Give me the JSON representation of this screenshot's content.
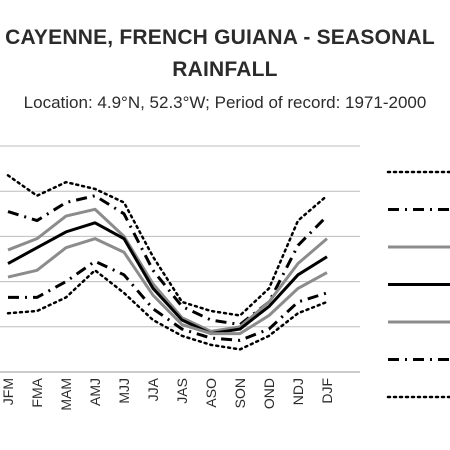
{
  "chart_data": {
    "type": "line",
    "title_line1": "CAYENNE, FRENCH GUIANA - SEASONAL",
    "title_line2": "RAINFALL",
    "subtitle": "Location: 4.9°N, 52.3°W; Period of record: 1971-2000",
    "categories": [
      "JFM",
      "FMA",
      "MAM",
      "AMJ",
      "MJJ",
      "JJA",
      "JAS",
      "ASO",
      "SON",
      "OND",
      "NDJ",
      "DJF"
    ],
    "grid": true,
    "ylim": [
      0,
      5
    ],
    "series": [
      {
        "style": "dotted",
        "width": 2.5,
        "color": "#000000",
        "values": [
          4.35,
          3.9,
          4.2,
          4.05,
          3.75,
          2.55,
          1.55,
          1.35,
          1.25,
          1.85,
          3.35,
          3.9
        ]
      },
      {
        "style": "dashdot",
        "width": 3,
        "color": "#000000",
        "values": [
          3.55,
          3.35,
          3.75,
          3.9,
          3.5,
          2.25,
          1.45,
          1.15,
          1.05,
          1.55,
          2.8,
          3.45
        ]
      },
      {
        "style": "solid",
        "width": 3,
        "color": "#8c8c8c",
        "values": [
          2.7,
          2.95,
          3.45,
          3.6,
          3.0,
          1.95,
          1.2,
          0.9,
          1.0,
          1.55,
          2.4,
          2.95
        ]
      },
      {
        "style": "solid",
        "width": 3,
        "color": "#000000",
        "values": [
          2.4,
          2.75,
          3.1,
          3.3,
          2.95,
          1.85,
          1.15,
          0.85,
          0.95,
          1.45,
          2.15,
          2.55
        ]
      },
      {
        "style": "solid",
        "width": 3,
        "color": "#8c8c8c",
        "values": [
          2.1,
          2.25,
          2.75,
          2.95,
          2.65,
          1.7,
          1.05,
          0.85,
          0.85,
          1.25,
          1.85,
          2.2
        ]
      },
      {
        "style": "dashdot",
        "width": 3,
        "color": "#000000",
        "values": [
          1.65,
          1.65,
          2.0,
          2.45,
          2.15,
          1.4,
          0.95,
          0.75,
          0.7,
          0.95,
          1.55,
          1.75
        ]
      },
      {
        "style": "dotted",
        "width": 2.5,
        "color": "#000000",
        "values": [
          1.3,
          1.35,
          1.65,
          2.25,
          1.75,
          1.15,
          0.8,
          0.6,
          0.5,
          0.8,
          1.3,
          1.55
        ]
      }
    ]
  }
}
